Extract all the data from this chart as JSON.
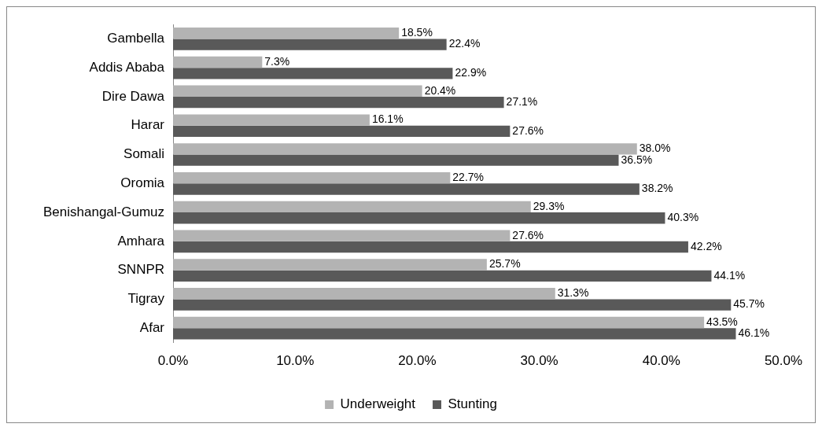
{
  "chart_data": {
    "type": "bar",
    "orientation": "horizontal",
    "categories": [
      "Gambella",
      "Addis Ababa",
      "Dire Dawa",
      "Harar",
      "Somali",
      "Oromia",
      "Benishangal-Gumuz",
      "Amhara",
      "SNNPR",
      "Tigray",
      "Afar"
    ],
    "series": [
      {
        "name": "Underweight",
        "color": "#b3b3b3",
        "values": [
          18.5,
          7.3,
          20.4,
          16.1,
          38.0,
          22.7,
          29.3,
          27.6,
          25.7,
          31.3,
          43.5
        ],
        "value_labels": [
          "18.5%",
          "7.3%",
          "20.4%",
          "16.1%",
          "38.0%",
          "22.7%",
          "29.3%",
          "27.6%",
          "25.7%",
          "31.3%",
          "43.5%"
        ]
      },
      {
        "name": "Stunting",
        "color": "#595959",
        "values": [
          22.4,
          22.9,
          27.1,
          27.6,
          36.5,
          38.2,
          40.3,
          42.2,
          44.1,
          45.7,
          46.1
        ],
        "value_labels": [
          "22.4%",
          "22.9%",
          "27.1%",
          "27.6%",
          "36.5%",
          "38.2%",
          "40.3%",
          "42.2%",
          "44.1%",
          "45.7%",
          "46.1%"
        ]
      }
    ],
    "xlim": [
      0,
      50
    ],
    "xticks": [
      {
        "value": 0,
        "label": "0.0%"
      },
      {
        "value": 10,
        "label": "10.0%"
      },
      {
        "value": 20,
        "label": "20.0%"
      },
      {
        "value": 30,
        "label": "30.0%"
      },
      {
        "value": 40,
        "label": "40.0%"
      },
      {
        "value": 50,
        "label": "50.0%"
      }
    ],
    "grid": false,
    "legend": "bottom"
  }
}
